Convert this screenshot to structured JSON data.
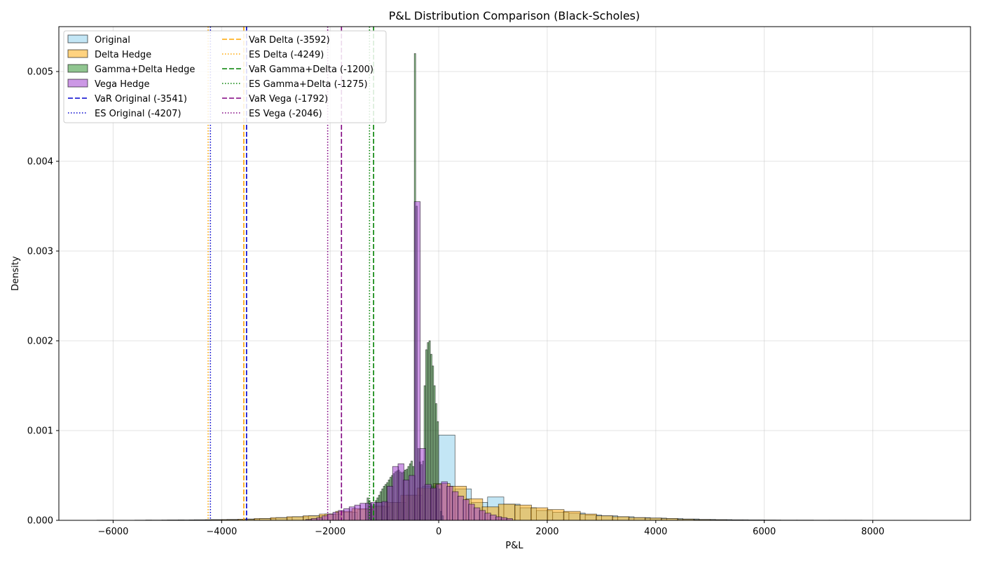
{
  "chart_data": {
    "type": "histogram",
    "title": "P&L Distribution Comparison (Black-Scholes)",
    "xlabel": "P&L",
    "ylabel": "Density",
    "xlim": [
      -7000,
      9800
    ],
    "ylim": [
      0,
      0.0055
    ],
    "xticks": [
      -6000,
      -4000,
      -2000,
      0,
      2000,
      4000,
      6000,
      8000
    ],
    "yticks": [
      0,
      0.001,
      0.002,
      0.003,
      0.004,
      0.005
    ],
    "grid": true,
    "legend_position": "top-left",
    "series": [
      {
        "name": "Original",
        "color": "#87ceeb",
        "bin_width": 300,
        "bins": [
          [
            -6300,
            2e-06
          ],
          [
            -5400,
            3e-06
          ],
          [
            -5100,
            4e-06
          ],
          [
            -4800,
            5e-06
          ],
          [
            -4500,
            6e-06
          ],
          [
            -4200,
            8e-06
          ],
          [
            -3900,
            1e-05
          ],
          [
            -3600,
            1.5e-05
          ],
          [
            -3300,
            2e-05
          ],
          [
            -3000,
            3e-05
          ],
          [
            -2700,
            4e-05
          ],
          [
            -2400,
            5e-05
          ],
          [
            -2100,
            7e-05
          ],
          [
            -1800,
            9e-05
          ],
          [
            -1500,
            0.00012
          ],
          [
            -1200,
            0.00015
          ],
          [
            -900,
            0.0002
          ],
          [
            -600,
            0.00028
          ],
          [
            -300,
            0.00038
          ],
          [
            0,
            0.00095
          ],
          [
            300,
            0.00035
          ],
          [
            600,
            0.0002
          ],
          [
            900,
            0.00026
          ],
          [
            1200,
            0.00018
          ],
          [
            1500,
            0.00014
          ],
          [
            1800,
            0.00011
          ],
          [
            2100,
            9e-05
          ],
          [
            2400,
            8e-05
          ],
          [
            2700,
            6e-05
          ],
          [
            3000,
            5e-05
          ],
          [
            3300,
            4e-05
          ],
          [
            3600,
            3e-05
          ],
          [
            3900,
            2.5e-05
          ],
          [
            4200,
            2e-05
          ],
          [
            4500,
            1.5e-05
          ],
          [
            4800,
            1e-05
          ],
          [
            5100,
            8e-06
          ],
          [
            5400,
            6e-06
          ],
          [
            5700,
            5e-06
          ],
          [
            6000,
            4e-06
          ],
          [
            6300,
            3e-06
          ],
          [
            6600,
            3e-06
          ],
          [
            6900,
            2e-06
          ],
          [
            7200,
            2e-06
          ],
          [
            7500,
            2e-06
          ],
          [
            7800,
            1e-06
          ],
          [
            8100,
            1e-06
          ],
          [
            8400,
            1e-06
          ],
          [
            8700,
            1e-06
          ]
        ]
      },
      {
        "name": "Delta Hedge",
        "color": "#ffa500",
        "bin_width": 310,
        "bins": [
          [
            -5600,
            2e-06
          ],
          [
            -5000,
            3e-06
          ],
          [
            -4600,
            4e-06
          ],
          [
            -4300,
            6e-06
          ],
          [
            -4000,
            8e-06
          ],
          [
            -3700,
            1.2e-05
          ],
          [
            -3400,
            2e-05
          ],
          [
            -3100,
            3e-05
          ],
          [
            -2800,
            4e-05
          ],
          [
            -2500,
            5e-05
          ],
          [
            -2200,
            7e-05
          ],
          [
            -1900,
            0.0001
          ],
          [
            -1600,
            0.00013
          ],
          [
            -1300,
            0.00016
          ],
          [
            -1000,
            0.0002
          ],
          [
            -700,
            0.00028
          ],
          [
            -400,
            0.00036
          ],
          [
            -100,
            0.00041
          ],
          [
            200,
            0.00038
          ],
          [
            500,
            0.00024
          ],
          [
            800,
            0.00015
          ],
          [
            1100,
            0.00018
          ],
          [
            1400,
            0.00017
          ],
          [
            1700,
            0.00014
          ],
          [
            2000,
            0.00012
          ],
          [
            2300,
            0.0001
          ],
          [
            2600,
            7e-05
          ],
          [
            2900,
            5e-05
          ],
          [
            3200,
            4e-05
          ],
          [
            3500,
            3e-05
          ],
          [
            3800,
            2.5e-05
          ],
          [
            4100,
            2e-05
          ],
          [
            4400,
            1.2e-05
          ],
          [
            4700,
            8e-06
          ],
          [
            5000,
            6e-06
          ],
          [
            5300,
            4e-06
          ],
          [
            5600,
            3e-06
          ],
          [
            5900,
            2e-06
          ]
        ]
      },
      {
        "name": "Gamma+Delta Hedge",
        "color": "#228b22",
        "bin_width": 26,
        "bins": [
          [
            -1320,
            0.00025
          ],
          [
            -1290,
            0.00022
          ],
          [
            -1260,
            0.00018
          ],
          [
            -1230,
            0.00015
          ],
          [
            -1200,
            0.00018
          ],
          [
            -1170,
            0.00022
          ],
          [
            -1140,
            0.00025
          ],
          [
            -1110,
            0.00028
          ],
          [
            -1080,
            0.00032
          ],
          [
            -1050,
            0.00035
          ],
          [
            -1020,
            0.00038
          ],
          [
            -990,
            0.0004
          ],
          [
            -960,
            0.00042
          ],
          [
            -930,
            0.00045
          ],
          [
            -900,
            0.00048
          ],
          [
            -870,
            0.0005
          ],
          [
            -840,
            0.00052
          ],
          [
            -810,
            0.00054
          ],
          [
            -780,
            0.00055
          ],
          [
            -750,
            0.00056
          ],
          [
            -720,
            0.00054
          ],
          [
            -690,
            0.00053
          ],
          [
            -660,
            0.00054
          ],
          [
            -630,
            0.00056
          ],
          [
            -600,
            0.00057
          ],
          [
            -570,
            0.0006
          ],
          [
            -540,
            0.00063
          ],
          [
            -510,
            0.00066
          ],
          [
            -480,
            0.0006
          ],
          [
            -450,
            0.0052
          ],
          [
            -420,
            0.0035
          ],
          [
            -390,
            0.0008
          ],
          [
            -360,
            0.00065
          ],
          [
            -330,
            0.00062
          ],
          [
            -300,
            0.00066
          ],
          [
            -270,
            0.0015
          ],
          [
            -240,
            0.0019
          ],
          [
            -210,
            0.00198
          ],
          [
            -180,
            0.002
          ],
          [
            -150,
            0.00185
          ],
          [
            -120,
            0.00172
          ],
          [
            -90,
            0.0015
          ],
          [
            -60,
            0.0013
          ],
          [
            -30,
            0.0011
          ],
          [
            0,
            0.00035
          ],
          [
            30,
            0.0001
          ],
          [
            60,
            5e-05
          ]
        ]
      },
      {
        "name": "Vega Hedge",
        "color": "#9932cc",
        "bin_width": 110,
        "bins": [
          [
            -2450,
            1e-05
          ],
          [
            -2350,
            2e-05
          ],
          [
            -2250,
            3e-05
          ],
          [
            -2150,
            5e-05
          ],
          [
            -2050,
            7e-05
          ],
          [
            -1950,
            9e-05
          ],
          [
            -1850,
            0.00011
          ],
          [
            -1750,
            0.00013
          ],
          [
            -1650,
            0.00015
          ],
          [
            -1550,
            0.00017
          ],
          [
            -1450,
            0.00019
          ],
          [
            -1350,
            0.00019
          ],
          [
            -1250,
            0.0002
          ],
          [
            -1150,
            0.0002
          ],
          [
            -1050,
            0.00021
          ],
          [
            -950,
            0.00038
          ],
          [
            -850,
            0.0006
          ],
          [
            -750,
            0.00063
          ],
          [
            -650,
            0.00045
          ],
          [
            -550,
            0.0005
          ],
          [
            -450,
            0.00355
          ],
          [
            -350,
            0.0008
          ],
          [
            -250,
            0.0004
          ],
          [
            -150,
            0.00036
          ],
          [
            -50,
            0.0004
          ],
          [
            50,
            0.00043
          ],
          [
            150,
            0.00038
          ],
          [
            250,
            0.00032
          ],
          [
            350,
            0.00027
          ],
          [
            450,
            0.00023
          ],
          [
            550,
            0.00018
          ],
          [
            650,
            0.00014
          ],
          [
            750,
            0.00011
          ],
          [
            850,
            8e-05
          ],
          [
            950,
            6e-05
          ],
          [
            1050,
            4e-05
          ],
          [
            1150,
            3e-05
          ],
          [
            1250,
            2e-05
          ]
        ]
      }
    ],
    "vlines": [
      {
        "label": "VaR Original (-3541)",
        "x": -3541,
        "color": "#0000cd",
        "style": "dashed"
      },
      {
        "label": "ES Original (-4207)",
        "x": -4207,
        "color": "#0000cd",
        "style": "dotted"
      },
      {
        "label": "VaR Delta (-3592)",
        "x": -3592,
        "color": "#ffa500",
        "style": "dashed"
      },
      {
        "label": "ES Delta (-4249)",
        "x": -4249,
        "color": "#ffa500",
        "style": "dotted"
      },
      {
        "label": "VaR Gamma+Delta (-1200)",
        "x": -1200,
        "color": "#008000",
        "style": "dashed"
      },
      {
        "label": "ES Gamma+Delta (-1275)",
        "x": -1275,
        "color": "#008000",
        "style": "dotted"
      },
      {
        "label": "VaR Vega (-1792)",
        "x": -1792,
        "color": "#800080",
        "style": "dashed"
      },
      {
        "label": "ES Vega (-2046)",
        "x": -2046,
        "color": "#800080",
        "style": "dotted"
      }
    ]
  }
}
